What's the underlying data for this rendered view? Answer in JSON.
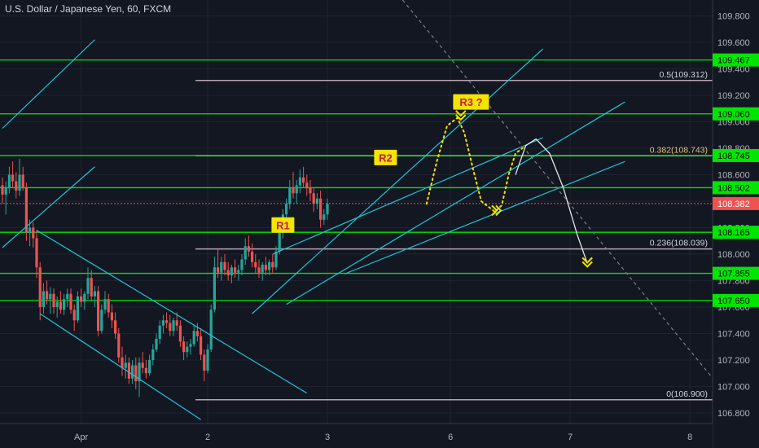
{
  "header": {
    "title": "U.S. Dollar / Japanese Yen, 60, FXCM"
  },
  "colors": {
    "background": "#131722",
    "grid": "#1f2330",
    "up": "#26a69a",
    "down": "#ef5350",
    "level": "#00e600",
    "fib": "#b8a4b4",
    "channel": "#22c5d8",
    "projection_dotted": "#f5e400",
    "projection_solid": "#e6e6e6",
    "trend_dashed": "#7a7f8a",
    "last_price": "#ef5350",
    "label_fill": "#f5e400",
    "label_text": "#c2185b"
  },
  "chart_data": {
    "type": "candlestick",
    "title": "U.S. Dollar / Japanese Yen, 60, FXCM",
    "ylim": [
      106.72,
      109.92
    ],
    "y_ticks": [
      "106.800",
      "107.000",
      "107.200",
      "107.400",
      "107.600",
      "107.800",
      "108.000",
      "108.200",
      "108.400",
      "108.600",
      "108.800",
      "109.000",
      "109.200",
      "109.400",
      "109.600",
      "109.800"
    ],
    "x_ticks": [
      "Apr",
      "2",
      "3",
      "6",
      "7",
      "8"
    ],
    "x_tick_index": [
      23,
      60,
      95,
      131,
      166,
      201
    ],
    "last_price": "108.382",
    "levels": [
      {
        "label": "109.467",
        "value": 109.467
      },
      {
        "label": "109.060",
        "value": 109.06
      },
      {
        "label": "108.745",
        "value": 108.745
      },
      {
        "label": "108.502",
        "value": 108.502
      },
      {
        "label": "108.165",
        "value": 108.165
      },
      {
        "label": "107.855",
        "value": 107.855
      },
      {
        "label": "107.650",
        "value": 107.65
      }
    ],
    "fib_levels": [
      {
        "label": "0.5(109.312)",
        "value": 109.312
      },
      {
        "label": "0.382(108.743)",
        "value": 108.743
      },
      {
        "label": "0.236(108.039)",
        "value": 108.039
      },
      {
        "label": "0(106.900)",
        "value": 106.9
      }
    ],
    "annotations": [
      {
        "label": "R1",
        "x": 82,
        "y": 108.22
      },
      {
        "label": "R2",
        "x": 112,
        "y": 108.73
      },
      {
        "label": "R3 ?",
        "x": 137,
        "y": 109.15
      }
    ],
    "trend_lines": [
      {
        "from": [
          0,
          108.95
        ],
        "to": [
          27,
          109.62
        ],
        "style": "channel"
      },
      {
        "from": [
          0,
          108.05
        ],
        "to": [
          27,
          108.66
        ],
        "style": "channel"
      },
      {
        "from": [
          10,
          108.18
        ],
        "to": [
          89,
          106.95
        ],
        "style": "channel"
      },
      {
        "from": [
          11,
          107.55
        ],
        "to": [
          58,
          106.75
        ],
        "style": "channel"
      },
      {
        "from": [
          73,
          107.55
        ],
        "to": [
          158,
          109.55
        ],
        "style": "channel"
      },
      {
        "from": [
          79,
          108.0
        ],
        "to": [
          158,
          108.88
        ],
        "style": "channel"
      },
      {
        "from": [
          83,
          107.62
        ],
        "to": [
          182,
          109.15
        ],
        "style": "channel"
      },
      {
        "from": [
          100,
          107.85
        ],
        "to": [
          182,
          108.7
        ],
        "style": "channel"
      },
      {
        "from": [
          117,
          109.92
        ],
        "to": [
          209,
          107.02
        ],
        "style": "dashed"
      }
    ],
    "projections": [
      {
        "style": "dotted",
        "points": [
          [
            124,
            108.38
          ],
          [
            127,
            108.7
          ],
          [
            130,
            108.97
          ],
          [
            133,
            109.03
          ],
          [
            135,
            108.92
          ],
          [
            138,
            108.6
          ],
          [
            140,
            108.4
          ],
          [
            144,
            108.32
          ],
          [
            146,
            108.37
          ],
          [
            148,
            108.6
          ],
          [
            150,
            108.76
          ],
          [
            152,
            108.8
          ]
        ]
      },
      {
        "style": "solid",
        "points": [
          [
            150,
            108.6
          ],
          [
            153,
            108.82
          ],
          [
            156,
            108.87
          ],
          [
            160,
            108.76
          ],
          [
            164,
            108.5
          ],
          [
            168,
            108.15
          ],
          [
            171,
            107.93
          ]
        ]
      }
    ],
    "arrows": [
      {
        "x": 134,
        "y": 109.04,
        "dir": "down",
        "color": "projection_dotted"
      },
      {
        "x": 145,
        "y": 108.33,
        "dir": "right",
        "color": "projection_dotted"
      },
      {
        "x": 171,
        "y": 107.93,
        "dir": "down",
        "color": "projection_dotted"
      }
    ],
    "candles": [
      [
        108.52,
        108.58,
        108.38,
        108.45
      ],
      [
        108.45,
        108.55,
        108.3,
        108.5
      ],
      [
        108.5,
        108.66,
        108.46,
        108.6
      ],
      [
        108.6,
        108.7,
        108.5,
        108.55
      ],
      [
        108.55,
        108.62,
        108.42,
        108.48
      ],
      [
        108.48,
        108.72,
        108.44,
        108.6
      ],
      [
        108.6,
        108.66,
        108.48,
        108.5
      ],
      [
        108.5,
        108.54,
        108.1,
        108.16
      ],
      [
        108.16,
        108.26,
        108.06,
        108.2
      ],
      [
        108.2,
        108.24,
        108.05,
        108.12
      ],
      [
        108.12,
        108.18,
        107.82,
        107.9
      ],
      [
        107.9,
        107.94,
        107.5,
        107.6
      ],
      [
        107.6,
        107.78,
        107.55,
        107.72
      ],
      [
        107.72,
        107.8,
        107.62,
        107.66
      ],
      [
        107.66,
        107.75,
        107.55,
        107.7
      ],
      [
        107.7,
        107.74,
        107.55,
        107.6
      ],
      [
        107.6,
        107.68,
        107.52,
        107.64
      ],
      [
        107.64,
        107.72,
        107.55,
        107.58
      ],
      [
        107.58,
        107.7,
        107.54,
        107.66
      ],
      [
        107.66,
        107.74,
        107.6,
        107.7
      ],
      [
        107.7,
        107.74,
        107.55,
        107.58
      ],
      [
        107.58,
        107.62,
        107.42,
        107.5
      ],
      [
        107.5,
        107.72,
        107.48,
        107.68
      ],
      [
        107.68,
        107.74,
        107.6,
        107.64
      ],
      [
        107.64,
        107.72,
        107.58,
        107.7
      ],
      [
        107.7,
        107.9,
        107.66,
        107.82
      ],
      [
        107.82,
        107.88,
        107.64,
        107.68
      ],
      [
        107.68,
        107.76,
        107.6,
        107.72
      ],
      [
        107.72,
        107.76,
        107.38,
        107.42
      ],
      [
        107.42,
        107.62,
        107.4,
        107.58
      ],
      [
        107.58,
        107.72,
        107.55,
        107.66
      ],
      [
        107.66,
        107.7,
        107.52,
        107.56
      ],
      [
        107.56,
        107.62,
        107.44,
        107.5
      ],
      [
        107.5,
        107.56,
        107.36,
        107.4
      ],
      [
        107.4,
        107.44,
        107.18,
        107.22
      ],
      [
        107.22,
        107.3,
        107.08,
        107.14
      ],
      [
        107.14,
        107.24,
        107.06,
        107.18
      ],
      [
        107.18,
        107.22,
        107.02,
        107.06
      ],
      [
        107.06,
        107.2,
        107.02,
        107.16
      ],
      [
        107.16,
        107.22,
        106.98,
        107.04
      ],
      [
        107.04,
        107.22,
        106.92,
        107.18
      ],
      [
        107.18,
        107.26,
        107.1,
        107.14
      ],
      [
        107.14,
        107.2,
        107.06,
        107.1
      ],
      [
        107.1,
        107.24,
        107.08,
        107.2
      ],
      [
        107.2,
        107.32,
        107.16,
        107.28
      ],
      [
        107.28,
        107.4,
        107.26,
        107.36
      ],
      [
        107.36,
        107.5,
        107.32,
        107.46
      ],
      [
        107.46,
        107.54,
        107.4,
        107.5
      ],
      [
        107.5,
        107.56,
        107.44,
        107.48
      ],
      [
        107.48,
        107.54,
        107.38,
        107.42
      ],
      [
        107.42,
        107.52,
        107.38,
        107.5
      ],
      [
        107.5,
        107.56,
        107.42,
        107.46
      ],
      [
        107.46,
        107.5,
        107.3,
        107.34
      ],
      [
        107.34,
        107.38,
        107.2,
        107.26
      ],
      [
        107.26,
        107.34,
        107.22,
        107.3
      ],
      [
        107.3,
        107.36,
        107.24,
        107.32
      ],
      [
        107.32,
        107.46,
        107.3,
        107.42
      ],
      [
        107.42,
        107.48,
        107.34,
        107.38
      ],
      [
        107.38,
        107.44,
        107.2,
        107.24
      ],
      [
        107.24,
        107.28,
        107.04,
        107.12
      ],
      [
        107.12,
        107.32,
        107.1,
        107.28
      ],
      [
        107.28,
        107.62,
        107.26,
        107.58
      ],
      [
        107.58,
        107.98,
        107.56,
        107.9
      ],
      [
        107.9,
        108.04,
        107.82,
        107.86
      ],
      [
        107.86,
        107.98,
        107.8,
        107.94
      ],
      [
        107.94,
        108.0,
        107.84,
        107.88
      ],
      [
        107.88,
        107.94,
        107.8,
        107.84
      ],
      [
        107.84,
        107.92,
        107.78,
        107.9
      ],
      [
        107.9,
        107.96,
        107.82,
        107.86
      ],
      [
        107.86,
        107.92,
        107.8,
        107.88
      ],
      [
        107.88,
        108.0,
        107.84,
        107.96
      ],
      [
        107.96,
        108.12,
        107.92,
        108.06
      ],
      [
        108.06,
        108.14,
        107.98,
        108.02
      ],
      [
        108.02,
        108.08,
        107.9,
        107.94
      ],
      [
        107.94,
        108.0,
        107.86,
        107.9
      ],
      [
        107.9,
        107.96,
        107.82,
        107.86
      ],
      [
        107.86,
        107.94,
        107.8,
        107.92
      ],
      [
        107.92,
        107.98,
        107.84,
        107.88
      ],
      [
        107.88,
        107.96,
        107.84,
        107.94
      ],
      [
        107.94,
        108.0,
        107.86,
        107.9
      ],
      [
        107.9,
        108.06,
        107.88,
        108.02
      ],
      [
        108.02,
        108.2,
        108.0,
        108.16
      ],
      [
        108.16,
        108.34,
        108.12,
        108.3
      ],
      [
        108.3,
        108.42,
        108.22,
        108.38
      ],
      [
        108.38,
        108.56,
        108.34,
        108.5
      ],
      [
        108.5,
        108.62,
        108.42,
        108.46
      ],
      [
        108.46,
        108.56,
        108.38,
        108.52
      ],
      [
        108.52,
        108.64,
        108.46,
        108.58
      ],
      [
        108.58,
        108.66,
        108.5,
        108.54
      ],
      [
        108.54,
        108.6,
        108.44,
        108.5
      ],
      [
        108.5,
        108.56,
        108.4,
        108.46
      ],
      [
        108.46,
        108.5,
        108.32,
        108.38
      ],
      [
        108.38,
        108.46,
        108.34,
        108.42
      ],
      [
        108.42,
        108.48,
        108.2,
        108.26
      ],
      [
        108.26,
        108.34,
        108.22,
        108.3
      ],
      [
        108.3,
        108.42,
        108.26,
        108.38
      ]
    ]
  }
}
